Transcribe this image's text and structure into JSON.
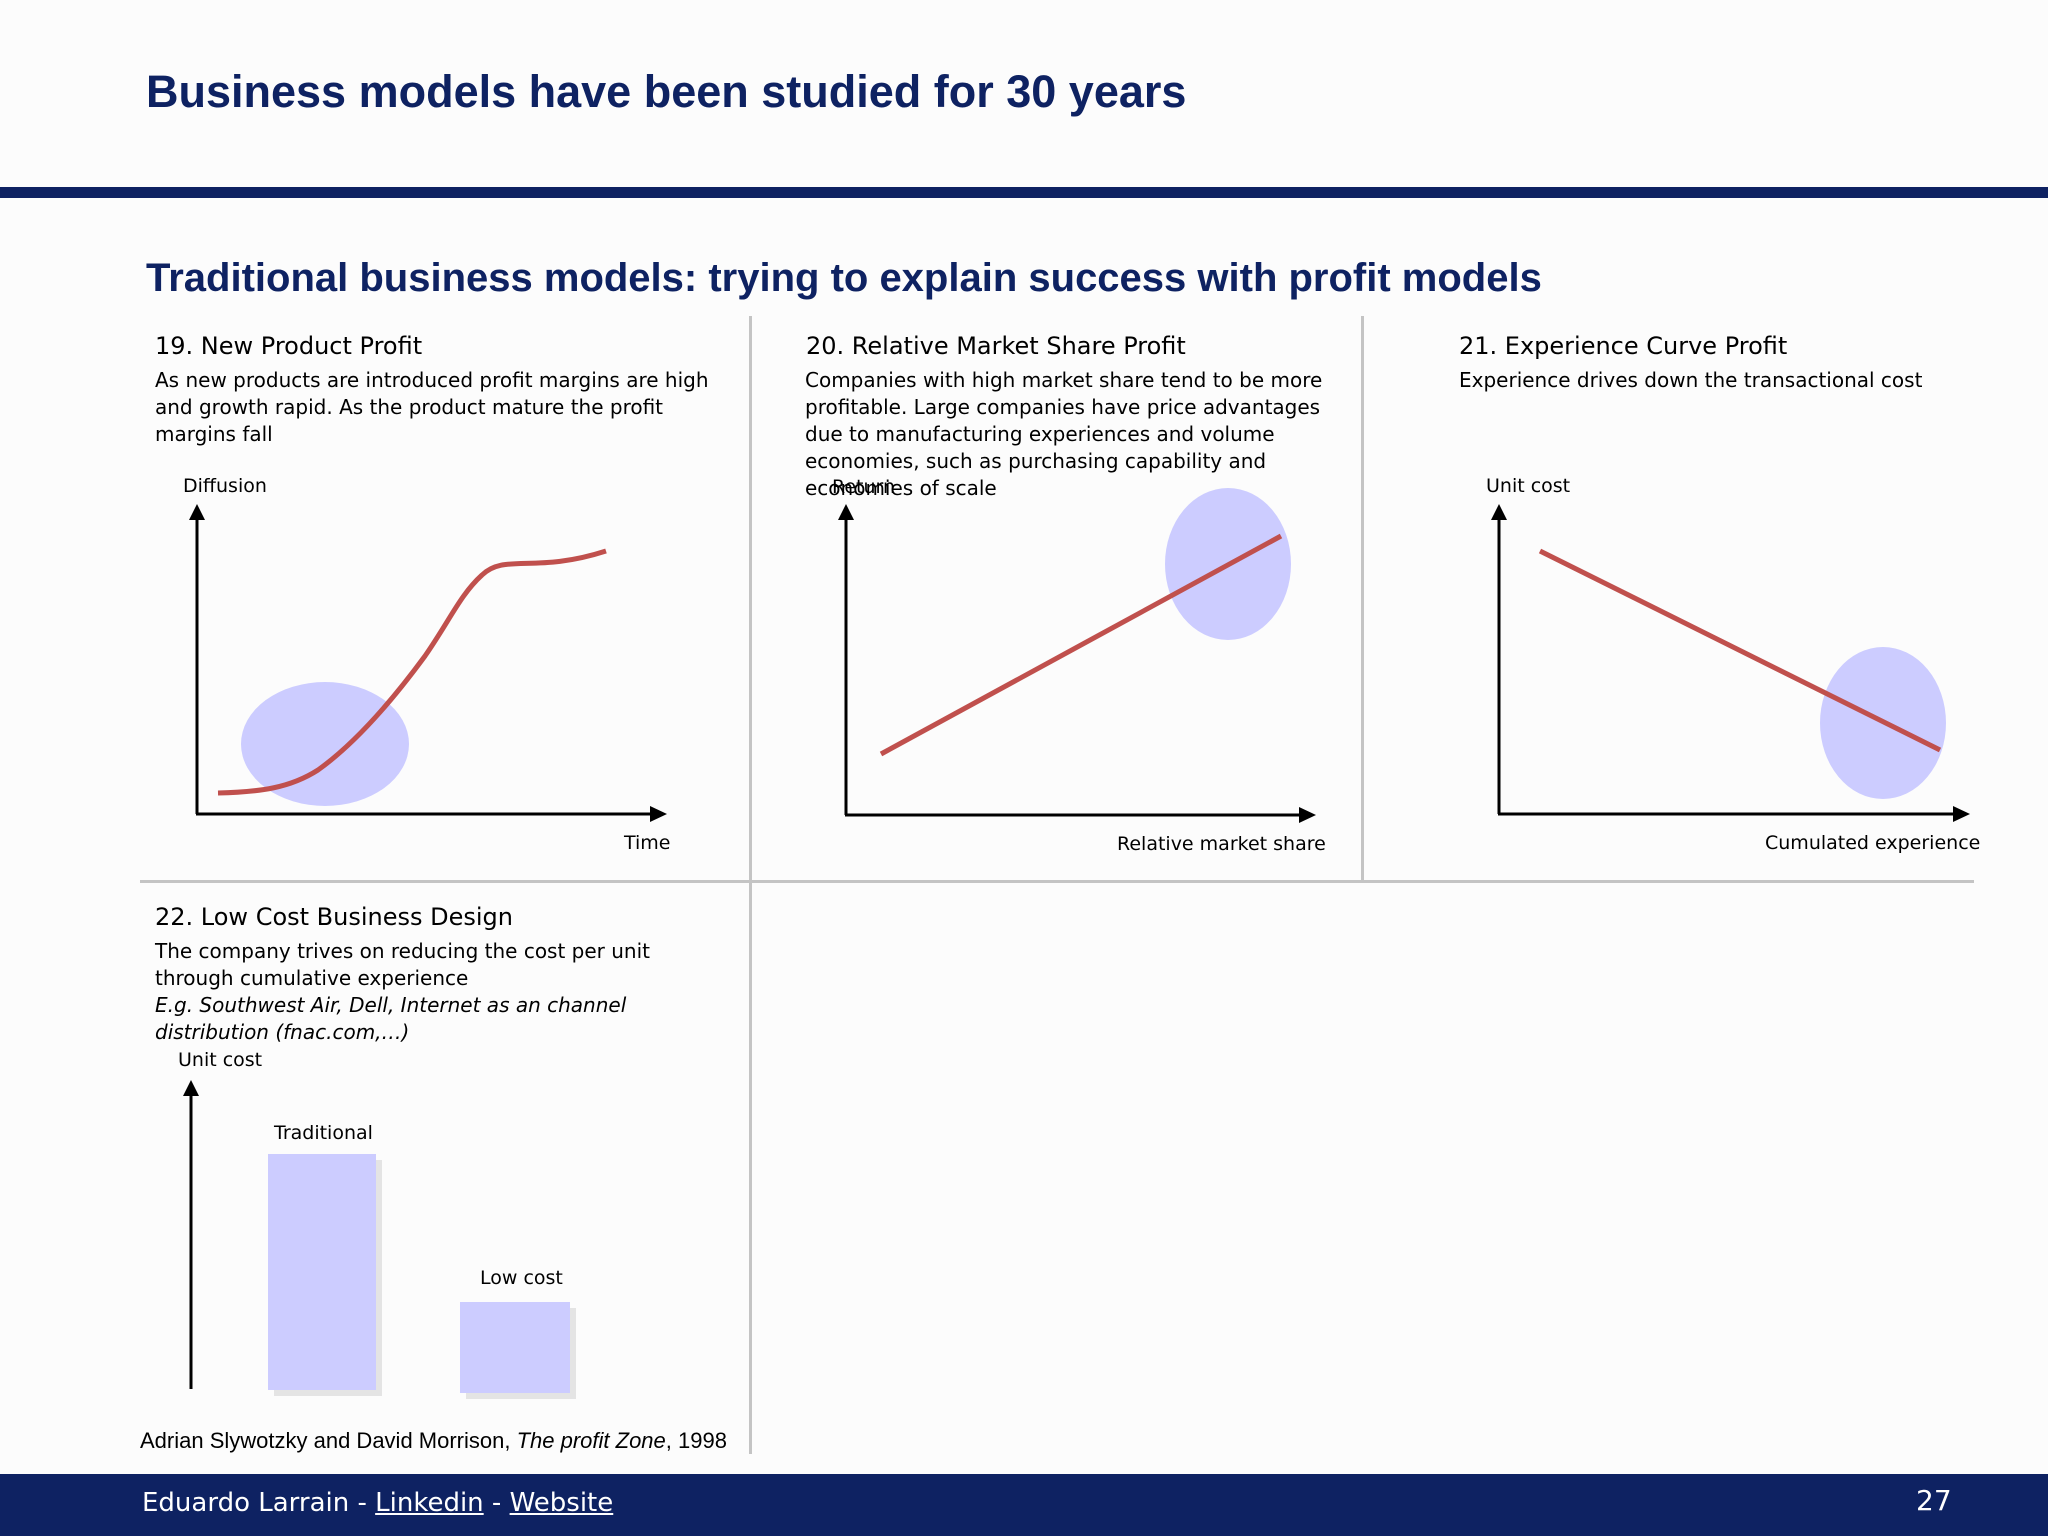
{
  "slide": {
    "title": "Business models have been studied for 30 years",
    "subtitle": "Traditional business models: trying to explain success with profit models"
  },
  "panels": [
    {
      "title": "19. New Product Profit",
      "description": "As new products are introduced profit margins are high and growth rapid. As the product mature the profit margins fall",
      "y_label": "Diffusion",
      "x_label": "Time"
    },
    {
      "title": "20. Relative Market Share Profit",
      "description": "Companies with high market share tend to be more profitable. Large companies have price advantages due to manufacturing experiences and volume economies, such as purchasing capability and economies of scale",
      "y_label": "Return",
      "x_label": "Relative market share"
    },
    {
      "title": "21. Experience Curve Profit",
      "description": "Experience drives down the transactional cost",
      "y_label": "Unit cost",
      "x_label": "Cumulated experience"
    },
    {
      "title": "22. Low Cost Business Design",
      "description": "The company trives on reducing the cost per unit through cumulative experience",
      "example": "E.g. Southwest Air, Dell, Internet as an channel distribution (fnac.com,…)",
      "y_label": "Unit cost",
      "bar_labels": [
        "Traditional",
        "Low cost"
      ]
    }
  ],
  "source": {
    "authors": "Adrian Slywotzky and David Morrison, ",
    "book": "The profit Zone",
    "year": ", 1998"
  },
  "footer": {
    "author": "Eduardo Larrain - ",
    "linkedin": "Linkedin",
    "separator": " - ",
    "website": "Website",
    "page": "27"
  },
  "colors": {
    "navy": "#0e2262",
    "curve": "#c0504d",
    "highlight": "#ccccff",
    "divider": "#c4c4c4"
  }
}
